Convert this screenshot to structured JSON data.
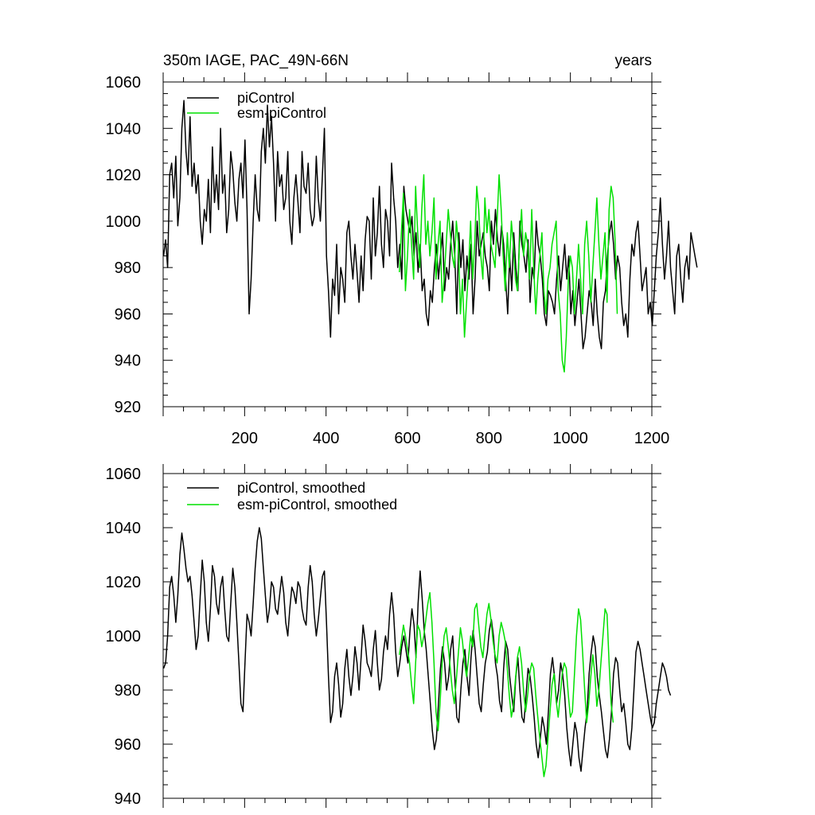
{
  "chart_data": [
    {
      "type": "line",
      "title": "350m IAGE, PAC_49N-66N",
      "units_label": "years",
      "xlim": [
        0,
        1200
      ],
      "ylim": [
        920,
        1060
      ],
      "x_ticks": [
        200,
        400,
        600,
        800,
        1000,
        1200
      ],
      "y_ticks": [
        920,
        940,
        960,
        980,
        1000,
        1020,
        1040,
        1060
      ],
      "legend": [
        "piControl",
        "esm-piControl"
      ],
      "series": [
        {
          "name": "piControl",
          "color": "#000000",
          "x_start": 1,
          "x_step": 5,
          "values": [
            985,
            992,
            980,
            1020,
            1025,
            1010,
            1028,
            998,
            1010,
            1040,
            1052,
            1030,
            1020,
            1045,
            1015,
            1025,
            1012,
            1020,
            1000,
            990,
            1005,
            1000,
            1018,
            995,
            1032,
            1008,
            1020,
            1005,
            1040,
            1012,
            1020,
            995,
            1005,
            1030,
            1022,
            1008,
            1000,
            1018,
            1025,
            1010,
            1035,
            1005,
            960,
            975,
            1000,
            1020,
            1005,
            1000,
            1030,
            1040,
            1025,
            1050,
            1032,
            1045,
            1025,
            1000,
            1030,
            1015,
            1020,
            1005,
            1010,
            1030,
            1000,
            990,
            1010,
            1020,
            1008,
            995,
            1030,
            1015,
            1012,
            1025,
            1005,
            998,
            1002,
            1028,
            1010,
            1000,
            1020,
            1040,
            985,
            970,
            950,
            975,
            968,
            990,
            960,
            980,
            975,
            965,
            995,
            1000,
            985,
            975,
            990,
            978,
            965,
            985,
            970,
            992,
            1002,
            1000,
            975,
            1010,
            985,
            995,
            1015,
            990,
            980,
            1005,
            1000,
            985,
            1025,
            1010,
            1000,
            980,
            990,
            975,
            1015,
            1005,
            1000,
            995,
            1002,
            985,
            995,
            978,
            990,
            970,
            975,
            960,
            955,
            970,
            965,
            980,
            990,
            975,
            985,
            995,
            970,
            980,
            975,
            990,
            1000,
            985,
            960,
            995,
            980,
            992,
            970,
            985,
            975,
            990,
            960,
            975,
            1000,
            985,
            990,
            995,
            985,
            980,
            970,
            1000,
            990,
            1005,
            992,
            985,
            998,
            990,
            975,
            960,
            985,
            970,
            995,
            980,
            970,
            1000,
            990,
            985,
            978,
            992,
            965,
            980,
            975,
            1000,
            990,
            985,
            975,
            960,
            955,
            970,
            968,
            965,
            960,
            975,
            985,
            970,
            980,
            990,
            975,
            985,
            960,
            970,
            955,
            965,
            975,
            960,
            945,
            950,
            960,
            970,
            965,
            955,
            975,
            960,
            950,
            945,
            965,
            970,
            985,
            995,
            1000,
            990,
            975,
            985,
            980,
            965,
            955,
            960,
            950,
            975,
            990,
            985,
            995,
            1000,
            985,
            970,
            975,
            980,
            960,
            965,
            955,
            970,
            985,
            995,
            1010,
            990,
            975,
            985,
            1000,
            980,
            970,
            960,
            985,
            990,
            975,
            965,
            980,
            985,
            975,
            995,
            990,
            985,
            980
          ]
        },
        {
          "name": "esm-piControl",
          "color": "#00e000",
          "x_start": 580,
          "x_step": 5,
          "values": [
            978,
            995,
            1012,
            970,
            985,
            1005,
            990,
            975,
            1015,
            995,
            980,
            1005,
            1020,
            990,
            1000,
            985,
            995,
            1010,
            975,
            990,
            1000,
            965,
            975,
            990,
            1005,
            995,
            985,
            980,
            1000,
            990,
            960,
            975,
            950,
            965,
            980,
            1000,
            975,
            990,
            1015,
            1005,
            985,
            975,
            1010,
            995,
            1005,
            990,
            985,
            980,
            1000,
            1020,
            1005,
            985,
            970,
            995,
            980,
            1000,
            990,
            975,
            970,
            990,
            1005,
            985,
            995,
            990,
            975,
            1005,
            980,
            960,
            975,
            985,
            995,
            970,
            960,
            975,
            980,
            990,
            995,
            1000,
            970,
            960,
            940,
            935,
            950,
            975,
            985,
            980,
            960,
            975,
            990,
            975,
            960,
            990,
            1000,
            985,
            965,
            980,
            995,
            1010,
            990,
            975,
            985,
            995,
            965,
            1005,
            1015,
            1010,
            990,
            960
          ]
        }
      ]
    },
    {
      "type": "line",
      "title": "",
      "xlim": [
        0,
        1200
      ],
      "ylim": [
        940,
        1060
      ],
      "y_ticks": [
        940,
        960,
        980,
        1000,
        1020,
        1040,
        1060
      ],
      "legend": [
        "piControl, smoothed",
        "esm-piControl, smoothed"
      ],
      "series": [
        {
          "name": "piControl, smoothed",
          "color": "#000000",
          "x_start": 1,
          "x_step": 5,
          "values": [
            988,
            990,
            1000,
            1018,
            1022,
            1015,
            1005,
            1015,
            1030,
            1038,
            1032,
            1025,
            1020,
            1022,
            1015,
            1005,
            995,
            1000,
            1015,
            1028,
            1020,
            1005,
            998,
            1010,
            1026,
            1022,
            1012,
            1008,
            1018,
            1022,
            1010,
            1000,
            998,
            1012,
            1025,
            1018,
            1005,
            990,
            975,
            972,
            990,
            1008,
            1005,
            1000,
            1012,
            1025,
            1035,
            1040,
            1036,
            1025,
            1015,
            1005,
            1010,
            1020,
            1018,
            1010,
            1008,
            1015,
            1022,
            1016,
            1005,
            1000,
            1010,
            1018,
            1016,
            1012,
            1020,
            1018,
            1010,
            1006,
            1004,
            1018,
            1026,
            1020,
            1008,
            1000,
            1006,
            1014,
            1022,
            1024,
            1005,
            985,
            968,
            972,
            985,
            990,
            982,
            970,
            975,
            988,
            995,
            985,
            978,
            985,
            996,
            990,
            980,
            992,
            1004,
            998,
            990,
            988,
            985,
            995,
            1002,
            990,
            980,
            984,
            994,
            1000,
            995,
            1008,
            1016,
            1008,
            994,
            985,
            990,
            996,
            1000,
            995,
            990,
            1002,
            1010,
            1004,
            992,
            1012,
            1024,
            1014,
            1002,
            995,
            985,
            975,
            965,
            958,
            962,
            975,
            988,
            996,
            990,
            980,
            985,
            995,
            1000,
            985,
            970,
            968,
            980,
            990,
            995,
            985,
            978,
            992,
            1002,
            995,
            985,
            975,
            972,
            982,
            990,
            994,
            1002,
            1006,
            1000,
            990,
            985,
            976,
            972,
            988,
            998,
            995,
            985,
            978,
            972,
            985,
            992,
            980,
            970,
            968,
            978,
            988,
            985,
            978,
            970,
            960,
            955,
            962,
            970,
            966,
            960,
            972,
            986,
            992,
            985,
            975,
            980,
            990,
            986,
            978,
            966,
            958,
            952,
            960,
            968,
            964,
            955,
            950,
            958,
            966,
            972,
            986,
            994,
            1000,
            996,
            985,
            978,
            972,
            965,
            958,
            955,
            962,
            972,
            986,
            992,
            990,
            980,
            972,
            975,
            968,
            960,
            958,
            966,
            980,
            994,
            998,
            995,
            990,
            985,
            980,
            975,
            970,
            966,
            968,
            975,
            980,
            985,
            990,
            988,
            985,
            980,
            978
          ]
        },
        {
          "name": "esm-piControl, smoothed",
          "color": "#00e000",
          "x_start": 580,
          "x_step": 5,
          "values": [
            993,
            998,
            1004,
            1000,
            995,
            990,
            982,
            975,
            990,
            1004,
            1002,
            996,
            1000,
            1006,
            1012,
            1016,
            1005,
            990,
            972,
            965,
            975,
            990,
            1000,
            1003,
            996,
            988,
            980,
            975,
            984,
            994,
            1003,
            998,
            990,
            985,
            992,
            1000,
            996,
            1010,
            1012,
            1004,
            996,
            992,
            1000,
            1008,
            1012,
            1006,
            998,
            993,
            990,
            1000,
            1005,
            1002,
            998,
            988,
            978,
            970,
            974,
            984,
            992,
            996,
            990,
            980,
            972,
            978,
            986,
            990,
            988,
            978,
            970,
            962,
            955,
            948,
            952,
            962,
            972,
            982,
            986,
            976,
            970,
            978,
            986,
            990,
            988,
            978,
            970,
            972,
            986,
            1000,
            1010,
            1006,
            994,
            980,
            968,
            975,
            985,
            993,
            986,
            974,
            980,
            990,
            1000,
            1010,
            1008,
            990,
            975,
            968
          ]
        }
      ]
    }
  ]
}
